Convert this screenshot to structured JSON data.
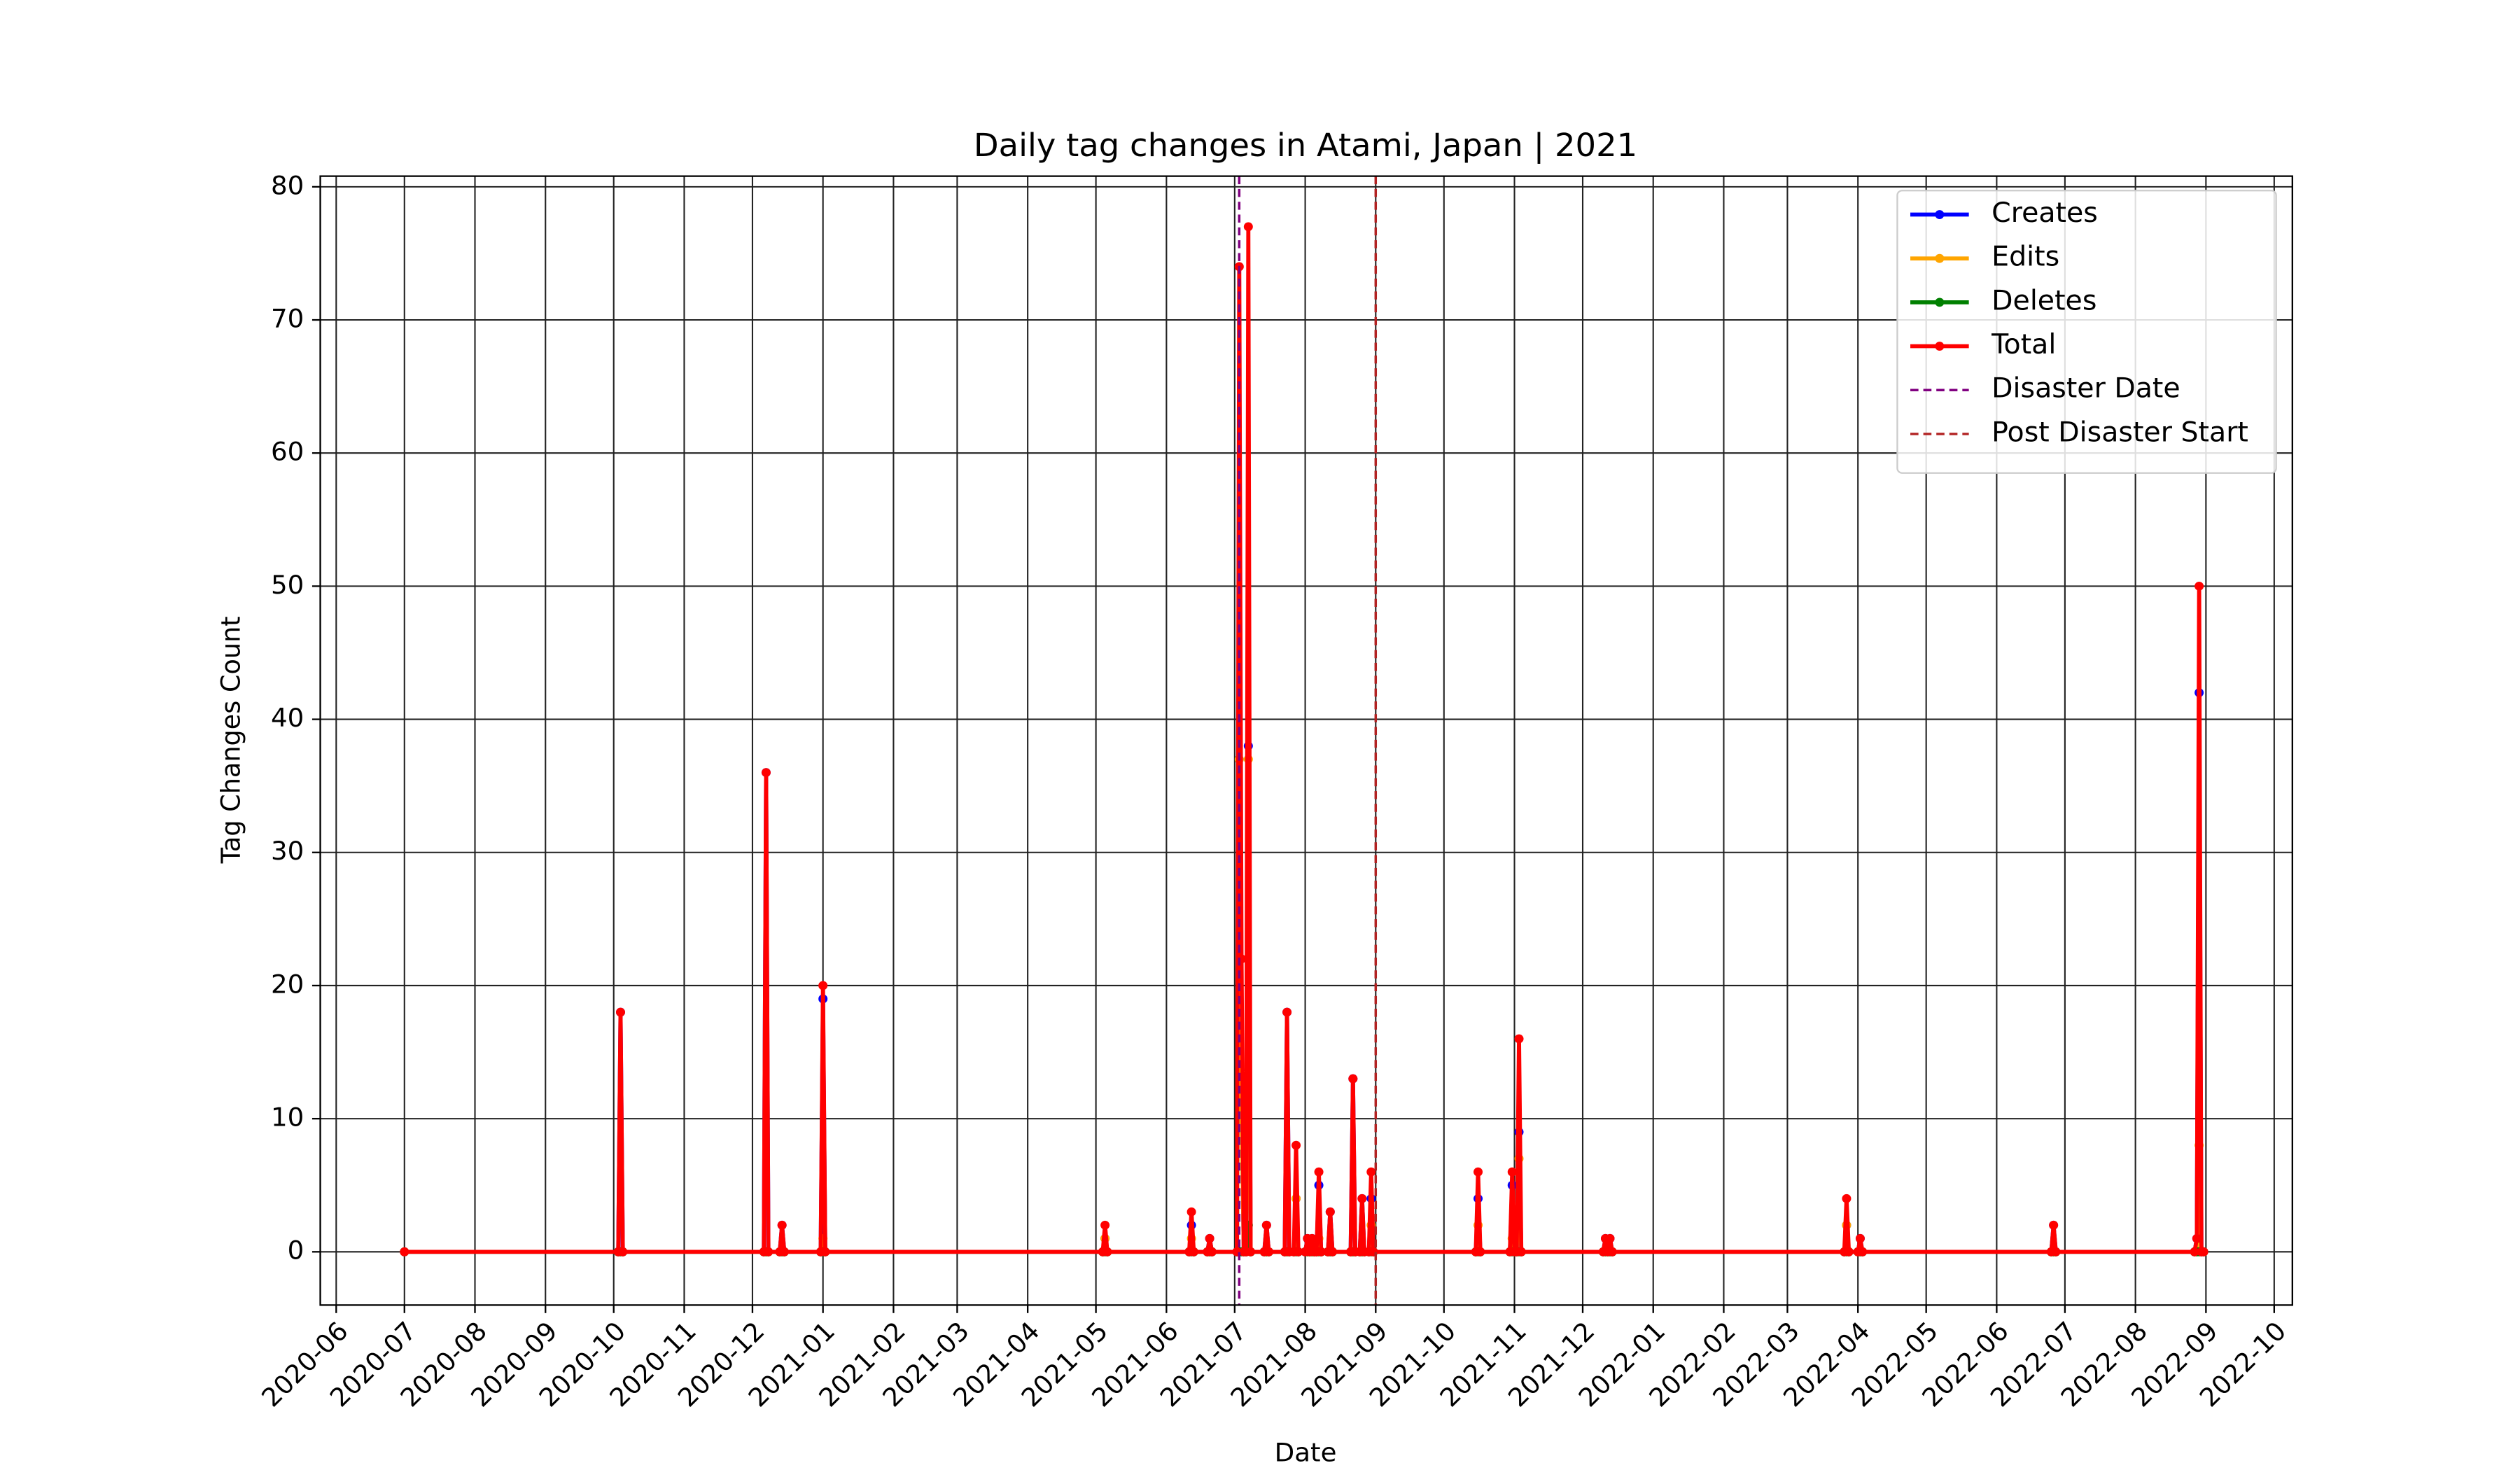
{
  "chart_data": {
    "type": "line",
    "title": "Daily tag changes in Atami, Japan | 2021",
    "x_label": "Date",
    "y_label": "Tag Changes Count",
    "x": [
      "2020-07-01",
      "2020-10-03",
      "2020-10-04",
      "2020-10-05",
      "2020-12-06",
      "2020-12-07",
      "2020-12-08",
      "2020-12-13",
      "2020-12-14",
      "2020-12-15",
      "2020-12-31",
      "2021-01-01",
      "2021-01-02",
      "2021-05-04",
      "2021-05-05",
      "2021-05-06",
      "2021-06-11",
      "2021-06-12",
      "2021-06-13",
      "2021-06-19",
      "2021-06-20",
      "2021-06-21",
      "2021-07-02",
      "2021-07-03",
      "2021-07-04",
      "2021-07-05",
      "2021-07-06",
      "2021-07-07",
      "2021-07-08",
      "2021-07-14",
      "2021-07-15",
      "2021-07-16",
      "2021-07-23",
      "2021-07-24",
      "2021-07-25",
      "2021-07-27",
      "2021-07-28",
      "2021-07-29",
      "2021-08-01",
      "2021-08-02",
      "2021-08-03",
      "2021-08-04",
      "2021-08-05",
      "2021-08-06",
      "2021-08-07",
      "2021-08-08",
      "2021-08-11",
      "2021-08-12",
      "2021-08-13",
      "2021-08-21",
      "2021-08-22",
      "2021-08-23",
      "2021-08-25",
      "2021-08-26",
      "2021-08-27",
      "2021-08-29",
      "2021-08-30",
      "2021-08-31",
      "2021-10-15",
      "2021-10-16",
      "2021-10-17",
      "2021-10-30",
      "2021-10-31",
      "2021-11-01",
      "2021-11-02",
      "2021-11-03",
      "2021-11-04",
      "2021-12-10",
      "2021-12-11",
      "2021-12-12",
      "2021-12-13",
      "2021-12-14",
      "2022-03-26",
      "2022-03-27",
      "2022-03-28",
      "2022-04-01",
      "2022-04-02",
      "2022-04-03",
      "2022-06-25",
      "2022-06-26",
      "2022-06-27",
      "2022-08-27",
      "2022-08-28",
      "2022-08-29",
      "2022-08-30",
      "2022-08-31"
    ],
    "series": [
      {
        "name": "Creates",
        "color": "#0000ff",
        "values": [
          0,
          0,
          18,
          0,
          0,
          36,
          0,
          0,
          2,
          0,
          0,
          19,
          0,
          0,
          1,
          0,
          0,
          2,
          0,
          0,
          1,
          0,
          0,
          37,
          11,
          0,
          0,
          38,
          0,
          0,
          2,
          0,
          0,
          18,
          0,
          0,
          4,
          0,
          0,
          1,
          0,
          1,
          0,
          0,
          5,
          0,
          0,
          3,
          0,
          0,
          13,
          0,
          0,
          4,
          0,
          0,
          4,
          0,
          0,
          4,
          0,
          0,
          5,
          0,
          0,
          9,
          0,
          0,
          1,
          0,
          1,
          0,
          0,
          2,
          0,
          0,
          1,
          0,
          0,
          2,
          0,
          0,
          1,
          42,
          0,
          0
        ]
      },
      {
        "name": "Edits",
        "color": "#ffa500",
        "values": [
          0,
          0,
          0,
          0,
          0,
          0,
          0,
          0,
          0,
          0,
          0,
          1,
          0,
          0,
          1,
          0,
          0,
          1,
          0,
          0,
          0,
          0,
          0,
          37,
          11,
          0,
          0,
          37,
          0,
          0,
          0,
          0,
          0,
          0,
          0,
          0,
          4,
          0,
          0,
          0,
          0,
          0,
          0,
          0,
          1,
          0,
          0,
          0,
          0,
          0,
          0,
          0,
          0,
          0,
          0,
          0,
          2,
          0,
          0,
          2,
          0,
          0,
          1,
          0,
          0,
          7,
          0,
          0,
          0,
          0,
          0,
          0,
          0,
          2,
          0,
          0,
          0,
          0,
          0,
          0,
          0,
          0,
          0,
          8,
          0,
          0
        ]
      },
      {
        "name": "Deletes",
        "color": "#008000",
        "values": [
          0,
          0,
          0,
          0,
          0,
          0,
          0,
          0,
          0,
          0,
          0,
          0,
          0,
          0,
          0,
          0,
          0,
          0,
          0,
          0,
          0,
          0,
          0,
          0,
          0,
          0,
          0,
          2,
          0,
          0,
          0,
          0,
          0,
          0,
          0,
          0,
          0,
          0,
          0,
          0,
          0,
          0,
          0,
          0,
          0,
          0,
          0,
          0,
          0,
          0,
          0,
          0,
          0,
          0,
          0,
          0,
          0,
          0,
          0,
          0,
          0,
          0,
          0,
          0,
          0,
          0,
          0,
          0,
          0,
          0,
          0,
          0,
          0,
          0,
          0,
          0,
          0,
          0,
          0,
          0,
          0,
          0,
          0,
          0,
          0,
          0
        ]
      },
      {
        "name": "Total",
        "color": "#ff0000",
        "values": [
          0,
          0,
          18,
          0,
          0,
          36,
          0,
          0,
          2,
          0,
          0,
          20,
          0,
          0,
          2,
          0,
          0,
          3,
          0,
          0,
          1,
          0,
          0,
          74,
          22,
          0,
          0,
          77,
          0,
          0,
          2,
          0,
          0,
          18,
          0,
          0,
          8,
          0,
          0,
          1,
          0,
          1,
          0,
          0,
          6,
          0,
          0,
          3,
          0,
          0,
          13,
          0,
          0,
          4,
          0,
          0,
          6,
          0,
          0,
          6,
          0,
          0,
          6,
          0,
          0,
          16,
          0,
          0,
          1,
          0,
          1,
          0,
          0,
          4,
          0,
          0,
          1,
          0,
          0,
          2,
          0,
          0,
          1,
          50,
          0,
          0
        ]
      }
    ],
    "vlines": [
      {
        "name": "Disaster Date",
        "x": "2021-07-03",
        "color": "#800080"
      },
      {
        "name": "Post Disaster Start",
        "x": "2021-09-01",
        "color": "#b22222"
      }
    ],
    "xlim": [
      "2020-05-25",
      "2022-10-09"
    ],
    "xticks": [
      "2020-06",
      "2020-07",
      "2020-08",
      "2020-09",
      "2020-10",
      "2020-11",
      "2020-12",
      "2021-01",
      "2021-02",
      "2021-03",
      "2021-04",
      "2021-05",
      "2021-06",
      "2021-07",
      "2021-08",
      "2021-09",
      "2021-10",
      "2021-11",
      "2021-12",
      "2022-01",
      "2022-02",
      "2022-03",
      "2022-04",
      "2022-05",
      "2022-06",
      "2022-07",
      "2022-08",
      "2022-09",
      "2022-10"
    ],
    "ylim": [
      -4,
      80.8
    ],
    "yticks": [
      0,
      10,
      20,
      30,
      40,
      50,
      60,
      70,
      80
    ],
    "grid": true,
    "legend": "upper right"
  }
}
